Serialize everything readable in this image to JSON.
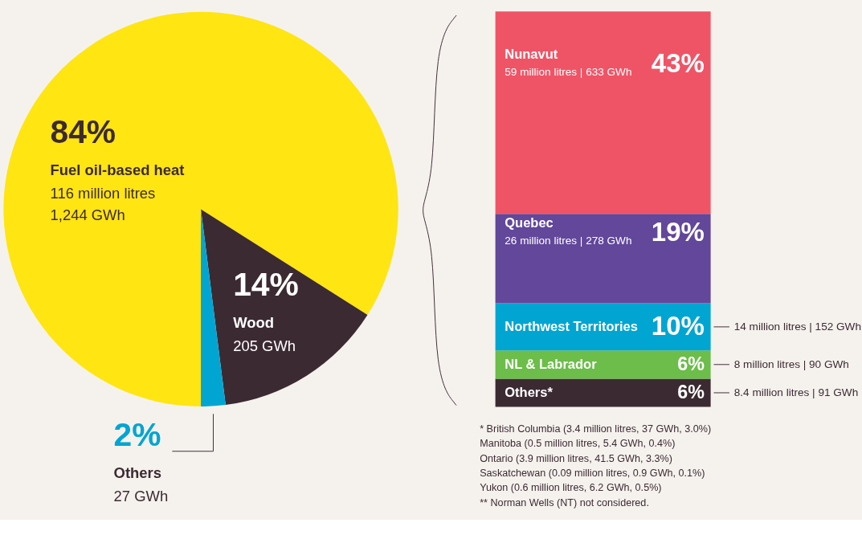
{
  "chart_data": [
    {
      "type": "pie",
      "categories": [
        "Fuel oil-based heat",
        "Wood",
        "Others"
      ],
      "values": [
        84,
        14,
        2
      ],
      "colors": [
        "#ffe512",
        "#3c2a32",
        "#00a5d2"
      ],
      "value_labels": [
        "84%",
        "14%",
        "2%"
      ],
      "legend": false,
      "annotations": [
        {
          "text": "116 million litres",
          "x": "Fuel oil-based heat"
        },
        {
          "text": "1,244 GWh",
          "x": "Fuel oil-based heat"
        },
        {
          "text": "205 GWh",
          "x": "Wood"
        },
        {
          "text": "27 GWh",
          "x": "Others"
        }
      ]
    },
    {
      "type": "bar",
      "stacked": true,
      "categories": [
        null
      ],
      "legend": false,
      "series": [
        {
          "name": "Others*",
          "color": "#3c2a32",
          "values": [
            6
          ],
          "value_labels": [
            "6%"
          ]
        },
        {
          "name": "NL & Labrador",
          "color": "#6cbd4a",
          "values": [
            6
          ],
          "value_labels": [
            "6%"
          ]
        },
        {
          "name": "Northwest Territories",
          "color": "#00a5d2",
          "values": [
            10
          ],
          "value_labels": [
            "10%"
          ]
        },
        {
          "name": "Quebec",
          "color": "#62479a",
          "values": [
            19
          ],
          "value_labels": [
            "19%"
          ]
        },
        {
          "name": "Nunavut",
          "color": "#ef5466",
          "values": [
            43
          ],
          "value_labels": [
            "43%"
          ]
        }
      ],
      "annotations": [
        "59 million litres | 633 GWh",
        "26 million litres | 278 GWh",
        "14 million litres | 152 GWh",
        "8 million litres | 90 GWh",
        "8.4 million litres | 91 GWh",
        "*   British Columbia (3.4 million litres, 37 GWh, 3.0%)",
        "     Manitoba (0.5 million litres, 5.4 GWh, 0.4%)",
        "     Ontario (3.9 million litres, 41.5 GWh, 3.3%)",
        "     Saskatchewan (0.09 million litres, 0.9 GWh, 0.1%)",
        "     Yukon (0.6 million litres, 6.2 GWh, 0.5%)",
        "** Norman Wells (NT) not considered."
      ]
    }
  ]
}
